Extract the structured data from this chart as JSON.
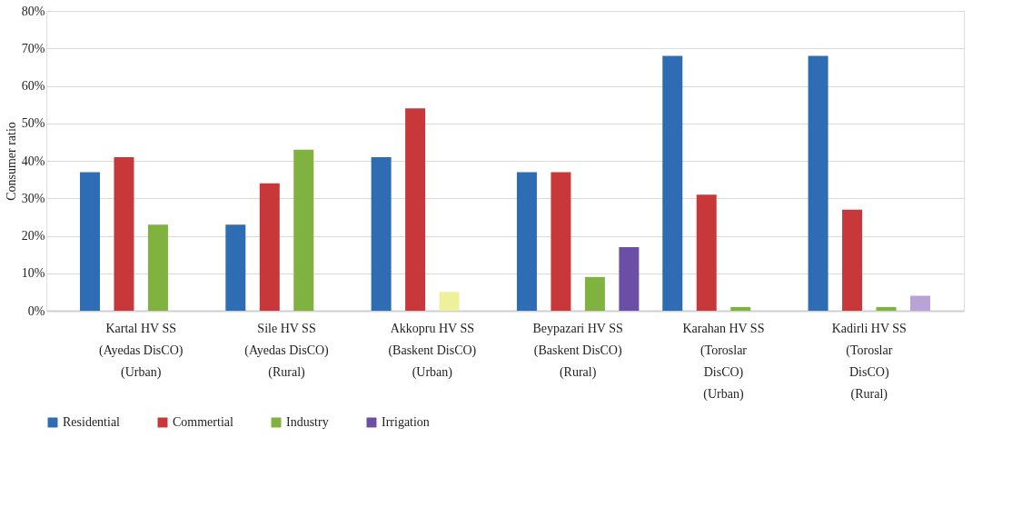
{
  "chart_data": {
    "type": "bar",
    "ylabel": "Consumer ratio",
    "categories": [
      "Kartal HV SS\n(Ayedas DisCO)\n(Urban)",
      "Sile HV SS\n(Ayedas DisCO)\n(Rural)",
      "Akkopru HV SS\n(Baskent DisCO)\n(Urban)",
      "Beypazari HV SS\n(Baskent DisCO)\n(Rural)",
      "Karahan HV SS\n(Toroslar\nDisCO)\n(Urban)",
      "Kadirli HV SS\n(Toroslar\nDisCO)\n(Rural)"
    ],
    "series": [
      {
        "name": "Residential",
        "color": "#2e6db4",
        "values": [
          37,
          23,
          41,
          37,
          68,
          68
        ]
      },
      {
        "name": "Commertial",
        "color": "#c8383b",
        "values": [
          41,
          34,
          54,
          37,
          31,
          27
        ]
      },
      {
        "name": "Industry",
        "color": "#7fb23f",
        "colors": [
          "#7fb23f",
          "#7fb23f",
          "#eef09a",
          "#7fb23f",
          "#7fb23f",
          "#7fb23f"
        ],
        "values": [
          23,
          43,
          5,
          9,
          1,
          1
        ]
      },
      {
        "name": "Irrigation",
        "color": "#6b4fa6",
        "colors": [
          "#6b4fa6",
          "#6b4fa6",
          "#6b4fa6",
          "#6b4fa6",
          "#6b4fa6",
          "#b9a3d6"
        ],
        "values": [
          null,
          null,
          null,
          17,
          null,
          4
        ]
      }
    ],
    "ylim": [
      0,
      80
    ],
    "yticks": [
      {
        "value": 0,
        "label": "0%"
      },
      {
        "value": 10,
        "label": "10%"
      },
      {
        "value": 20,
        "label": "20%"
      },
      {
        "value": 30,
        "label": "30%"
      },
      {
        "value": 40,
        "label": "40%"
      },
      {
        "value": 50,
        "label": "50%"
      },
      {
        "value": 60,
        "label": "60%"
      },
      {
        "value": 70,
        "label": "70%"
      },
      {
        "value": 80,
        "label": "80%"
      }
    ],
    "grid": "y",
    "legend": "bottom"
  }
}
